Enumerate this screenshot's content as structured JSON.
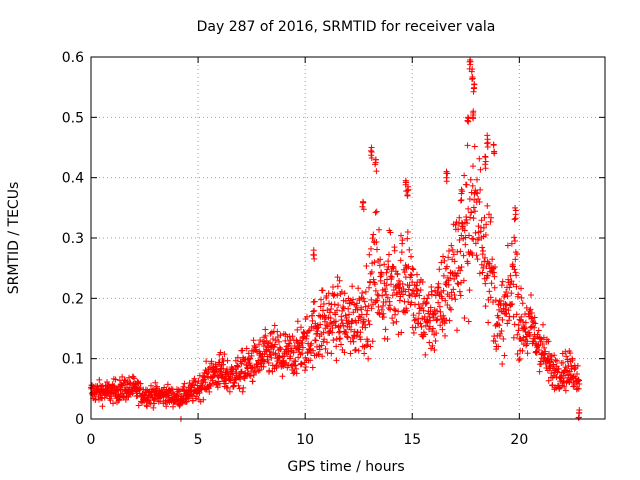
{
  "chart_data": {
    "type": "scatter",
    "title": "Day 287 of 2016, SRMTID for receiver vala",
    "xlabel": "GPS time / hours",
    "ylabel": "SRMTID / TECUs",
    "xlim": [
      0,
      24
    ],
    "ylim": [
      0,
      0.6
    ],
    "x_ticks": [
      0,
      5,
      10,
      15,
      20
    ],
    "y_ticks": [
      0,
      0.1,
      0.2,
      0.3,
      0.4,
      0.5,
      0.6
    ],
    "x_tick_labels": [
      "0",
      "5",
      "10",
      "15",
      "20"
    ],
    "y_tick_labels": [
      "0",
      "0.1",
      "0.2",
      "0.3",
      "0.4",
      "0.5",
      "0.6"
    ],
    "grid": true,
    "marker": "+",
    "series": [
      {
        "name": "SRMTID",
        "color": "#ff0000",
        "trend": [
          [
            0.0,
            0.045
          ],
          [
            0.5,
            0.045
          ],
          [
            1.0,
            0.045
          ],
          [
            1.5,
            0.05
          ],
          [
            2.0,
            0.05
          ],
          [
            2.5,
            0.04
          ],
          [
            3.0,
            0.04
          ],
          [
            3.5,
            0.04
          ],
          [
            4.0,
            0.035
          ],
          [
            4.5,
            0.04
          ],
          [
            5.0,
            0.05
          ],
          [
            5.5,
            0.07
          ],
          [
            6.0,
            0.08
          ],
          [
            6.5,
            0.07
          ],
          [
            7.0,
            0.08
          ],
          [
            7.5,
            0.09
          ],
          [
            8.0,
            0.1
          ],
          [
            8.5,
            0.11
          ],
          [
            9.0,
            0.1
          ],
          [
            9.5,
            0.11
          ],
          [
            10.0,
            0.12
          ],
          [
            10.5,
            0.15
          ],
          [
            11.0,
            0.16
          ],
          [
            11.5,
            0.17
          ],
          [
            12.0,
            0.16
          ],
          [
            12.5,
            0.17
          ],
          [
            13.0,
            0.19
          ],
          [
            13.3,
            0.26
          ],
          [
            13.6,
            0.2
          ],
          [
            14.0,
            0.22
          ],
          [
            14.5,
            0.23
          ],
          [
            14.8,
            0.25
          ],
          [
            15.0,
            0.2
          ],
          [
            15.5,
            0.17
          ],
          [
            16.0,
            0.17
          ],
          [
            16.5,
            0.2
          ],
          [
            17.0,
            0.26
          ],
          [
            17.5,
            0.3
          ],
          [
            17.8,
            0.34
          ],
          [
            18.0,
            0.33
          ],
          [
            18.3,
            0.32
          ],
          [
            18.6,
            0.27
          ],
          [
            19.0,
            0.15
          ],
          [
            19.5,
            0.19
          ],
          [
            19.8,
            0.25
          ],
          [
            20.0,
            0.15
          ],
          [
            20.5,
            0.15
          ],
          [
            21.0,
            0.12
          ],
          [
            21.5,
            0.08
          ],
          [
            22.0,
            0.08
          ],
          [
            22.5,
            0.08
          ],
          [
            22.8,
            0.07
          ]
        ],
        "spread": 0.35,
        "points_per_hour": 75,
        "spikes": [
          {
            "x": 4.2,
            "y": 0.0
          },
          {
            "x": 13.1,
            "y": 0.45
          },
          {
            "x": 13.3,
            "y": 0.43
          },
          {
            "x": 14.7,
            "y": 0.395
          },
          {
            "x": 14.8,
            "y": 0.385
          },
          {
            "x": 17.7,
            "y": 0.595
          },
          {
            "x": 17.8,
            "y": 0.58
          },
          {
            "x": 17.9,
            "y": 0.555
          },
          {
            "x": 17.6,
            "y": 0.5
          },
          {
            "x": 17.85,
            "y": 0.51
          },
          {
            "x": 18.5,
            "y": 0.47
          },
          {
            "x": 18.8,
            "y": 0.455
          },
          {
            "x": 18.4,
            "y": 0.435
          },
          {
            "x": 16.6,
            "y": 0.41
          },
          {
            "x": 17.3,
            "y": 0.38
          },
          {
            "x": 12.7,
            "y": 0.36
          },
          {
            "x": 19.8,
            "y": 0.35
          },
          {
            "x": 10.4,
            "y": 0.28
          },
          {
            "x": 22.8,
            "y": 0.015
          }
        ]
      }
    ]
  }
}
